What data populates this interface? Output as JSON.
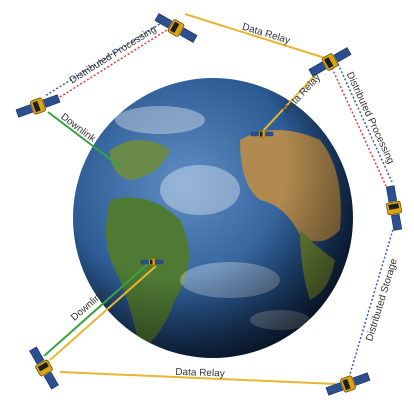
{
  "links": [
    {
      "label": "Data Relay"
    },
    {
      "label": "Distributed Processing"
    },
    {
      "label": "Downlink"
    },
    {
      "label": "Data Relay"
    },
    {
      "label": "Distributed Processing"
    },
    {
      "label": "Distributed Storage"
    },
    {
      "label": "Downlink"
    },
    {
      "label": "Data Relay"
    }
  ]
}
